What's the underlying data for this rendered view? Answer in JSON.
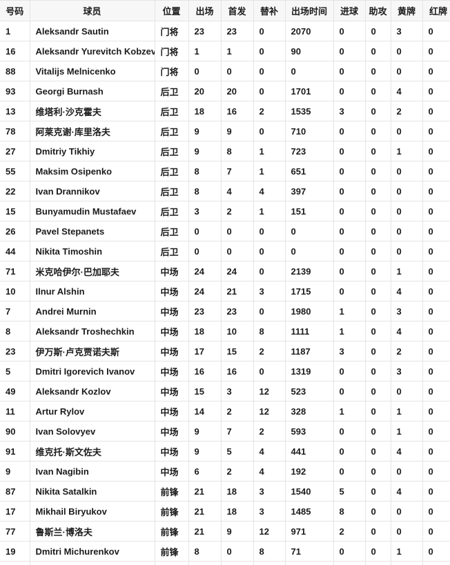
{
  "chart_data": {
    "type": "table",
    "title": "",
    "columns": [
      "号码",
      "球员",
      "位置",
      "出场",
      "首发",
      "替补",
      "出场时间",
      "进球",
      "助攻",
      "黄牌",
      "红牌"
    ],
    "rows": [
      [
        "1",
        "Aleksandr Sautin",
        "门将",
        "23",
        "23",
        "0",
        "2070",
        "0",
        "0",
        "3",
        "0"
      ],
      [
        "16",
        "Aleksandr Yurevitch Kobzev",
        "门将",
        "1",
        "1",
        "0",
        "90",
        "0",
        "0",
        "0",
        "0"
      ],
      [
        "88",
        "Vitalijs Melnicenko",
        "门将",
        "0",
        "0",
        "0",
        "0",
        "0",
        "0",
        "0",
        "0"
      ],
      [
        "93",
        "Georgi Burnash",
        "后卫",
        "20",
        "20",
        "0",
        "1701",
        "0",
        "0",
        "4",
        "0"
      ],
      [
        "13",
        "维塔利·沙克霍夫",
        "后卫",
        "18",
        "16",
        "2",
        "1535",
        "3",
        "0",
        "2",
        "0"
      ],
      [
        "78",
        "阿莱克谢·库里洛夫",
        "后卫",
        "9",
        "9",
        "0",
        "710",
        "0",
        "0",
        "0",
        "0"
      ],
      [
        "27",
        "Dmitriy Tikhiy",
        "后卫",
        "9",
        "8",
        "1",
        "723",
        "0",
        "0",
        "1",
        "0"
      ],
      [
        "55",
        "Maksim Osipenko",
        "后卫",
        "8",
        "7",
        "1",
        "651",
        "0",
        "0",
        "0",
        "0"
      ],
      [
        "22",
        "Ivan Drannikov",
        "后卫",
        "8",
        "4",
        "4",
        "397",
        "0",
        "0",
        "0",
        "0"
      ],
      [
        "15",
        "Bunyamudin Mustafaev",
        "后卫",
        "3",
        "2",
        "1",
        "151",
        "0",
        "0",
        "0",
        "0"
      ],
      [
        "26",
        "Pavel Stepanets",
        "后卫",
        "0",
        "0",
        "0",
        "0",
        "0",
        "0",
        "0",
        "0"
      ],
      [
        "44",
        "Nikita Timoshin",
        "后卫",
        "0",
        "0",
        "0",
        "0",
        "0",
        "0",
        "0",
        "0"
      ],
      [
        "71",
        "米克哈伊尔·巴加耶夫",
        "中场",
        "24",
        "24",
        "0",
        "2139",
        "0",
        "0",
        "1",
        "0"
      ],
      [
        "10",
        "Ilnur Alshin",
        "中场",
        "24",
        "21",
        "3",
        "1715",
        "0",
        "0",
        "4",
        "0"
      ],
      [
        "7",
        "Andrei Murnin",
        "中场",
        "23",
        "23",
        "0",
        "1980",
        "1",
        "0",
        "3",
        "0"
      ],
      [
        "8",
        "Aleksandr Troshechkin",
        "中场",
        "18",
        "10",
        "8",
        "1111",
        "1",
        "0",
        "4",
        "0"
      ],
      [
        "23",
        "伊万斯·卢克贾诺夫斯",
        "中场",
        "17",
        "15",
        "2",
        "1187",
        "3",
        "0",
        "2",
        "0"
      ],
      [
        "5",
        "Dmitri Igorevich Ivanov",
        "中场",
        "16",
        "16",
        "0",
        "1319",
        "0",
        "0",
        "3",
        "0"
      ],
      [
        "49",
        "Aleksandr Kozlov",
        "中场",
        "15",
        "3",
        "12",
        "523",
        "0",
        "0",
        "0",
        "0"
      ],
      [
        "11",
        "Artur Rylov",
        "中场",
        "14",
        "2",
        "12",
        "328",
        "1",
        "0",
        "1",
        "0"
      ],
      [
        "90",
        "Ivan Solovyev",
        "中场",
        "9",
        "7",
        "2",
        "593",
        "0",
        "0",
        "1",
        "0"
      ],
      [
        "91",
        "维克托·斯文佐夫",
        "中场",
        "9",
        "5",
        "4",
        "441",
        "0",
        "0",
        "4",
        "0"
      ],
      [
        "9",
        "Ivan Nagibin",
        "中场",
        "6",
        "2",
        "4",
        "192",
        "0",
        "0",
        "0",
        "0"
      ],
      [
        "87",
        "Nikita Satalkin",
        "前锋",
        "21",
        "18",
        "3",
        "1540",
        "5",
        "0",
        "4",
        "0"
      ],
      [
        "17",
        "Mikhail Biryukov",
        "前锋",
        "21",
        "18",
        "3",
        "1485",
        "8",
        "0",
        "0",
        "0"
      ],
      [
        "77",
        "鲁斯兰·博洛夫",
        "前锋",
        "21",
        "9",
        "12",
        "971",
        "2",
        "0",
        "0",
        "0"
      ],
      [
        "19",
        "Dmitri Michurenkov",
        "前锋",
        "8",
        "0",
        "8",
        "71",
        "0",
        "0",
        "1",
        "0"
      ]
    ],
    "layout_hints": {
      "grid": "on",
      "header_position": "top"
    }
  },
  "colors": {
    "header_bg": "#f7f7f7",
    "row_bg": "#ffffff",
    "border": "#e4e4e4",
    "text": "#1b1b1b"
  }
}
